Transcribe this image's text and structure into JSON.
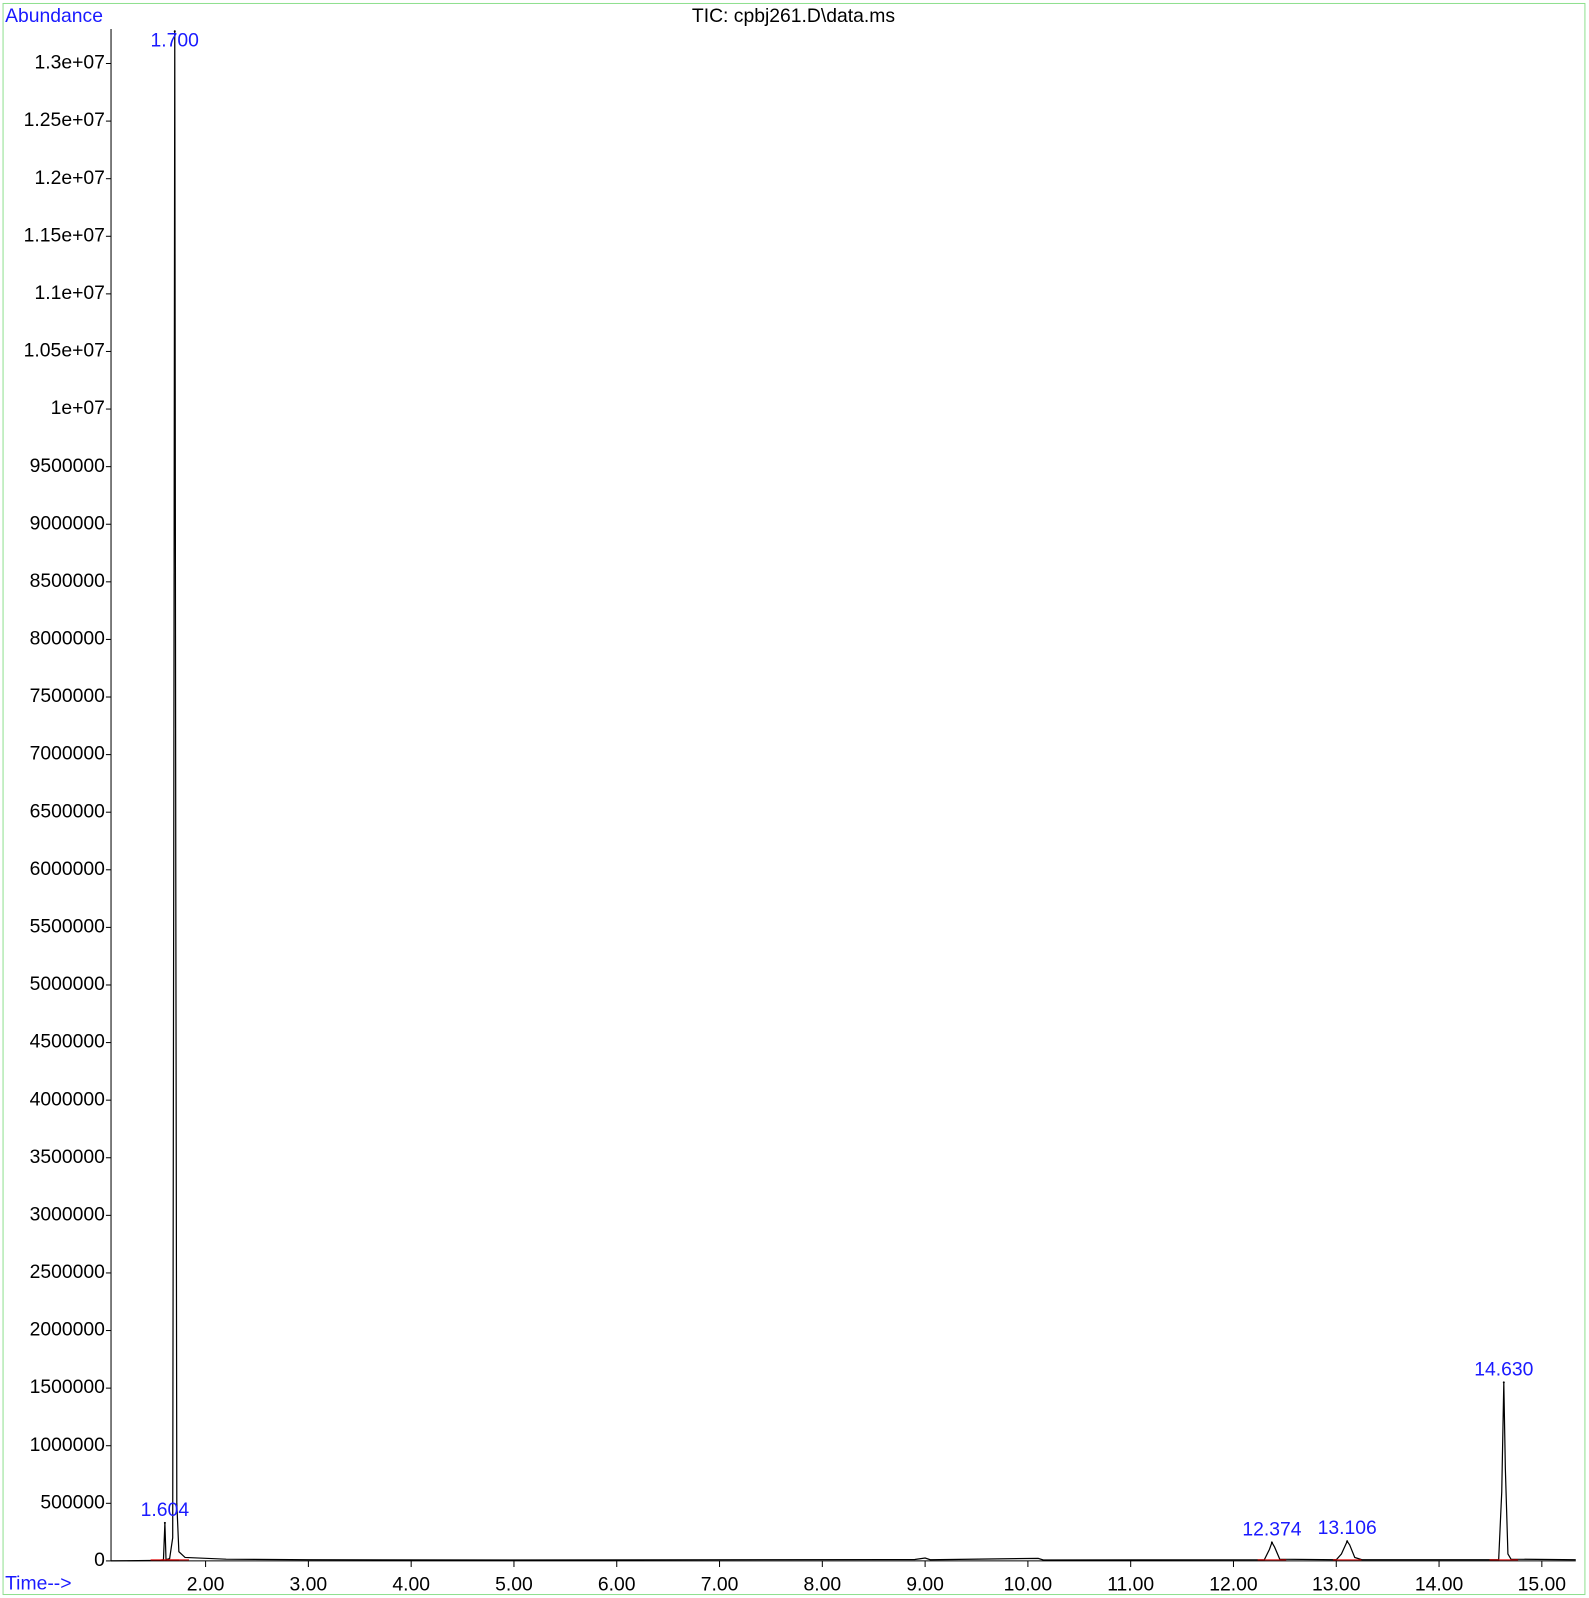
{
  "chart_data": {
    "type": "line",
    "title": "TIC: cpbj261.D\\data.ms",
    "y_label": "Abundance",
    "x_label": "Time-->",
    "xlim": [
      1.08,
      15.33
    ],
    "ylim": [
      0,
      13300000
    ],
    "xticks": [
      {
        "value": 2,
        "label": "2.00"
      },
      {
        "value": 3,
        "label": "3.00"
      },
      {
        "value": 4,
        "label": "4.00"
      },
      {
        "value": 5,
        "label": "5.00"
      },
      {
        "value": 6,
        "label": "6.00"
      },
      {
        "value": 7,
        "label": "7.00"
      },
      {
        "value": 8,
        "label": "8.00"
      },
      {
        "value": 9,
        "label": "9.00"
      },
      {
        "value": 10,
        "label": "10.00"
      },
      {
        "value": 11,
        "label": "11.00"
      },
      {
        "value": 12,
        "label": "12.00"
      },
      {
        "value": 13,
        "label": "13.00"
      },
      {
        "value": 14,
        "label": "14.00"
      },
      {
        "value": 15,
        "label": "15.00"
      }
    ],
    "yticks": [
      0,
      500000,
      1000000,
      1500000,
      2000000,
      2500000,
      3000000,
      3500000,
      4000000,
      4500000,
      5000000,
      5500000,
      6000000,
      6500000,
      7000000,
      7500000,
      8000000,
      8500000,
      9000000,
      9500000,
      {
        "value": 10000000,
        "label": "1e+07"
      },
      {
        "value": 10500000,
        "label": "1.05e+07"
      },
      {
        "value": 11000000,
        "label": "1.1e+07"
      },
      {
        "value": 11500000,
        "label": "1.15e+07"
      },
      {
        "value": 12000000,
        "label": "1.2e+07"
      },
      {
        "value": 12500000,
        "label": "1.25e+07"
      },
      {
        "value": 13000000,
        "label": "1.3e+07"
      }
    ],
    "series": [
      {
        "color": "#000000",
        "x": [
          1.08,
          1.55,
          1.59,
          1.604,
          1.615,
          1.65,
          1.68,
          1.69,
          1.7,
          1.71,
          1.72,
          1.74,
          1.8,
          2.2,
          3.0,
          5.0,
          8.9,
          9.0,
          9.05,
          10.1,
          10.15,
          12.3,
          12.35,
          12.374,
          12.4,
          12.45,
          13.0,
          13.05,
          13.106,
          13.13,
          13.18,
          13.25,
          14.58,
          14.61,
          14.63,
          14.645,
          14.67,
          14.7,
          15.33
        ],
        "values": [
          0,
          5000,
          10000,
          330000,
          10000,
          20000,
          200000,
          6000000,
          13280000,
          6000000,
          500000,
          80000,
          30000,
          15000,
          10000,
          8000,
          12000,
          25000,
          10000,
          22000,
          8000,
          10000,
          100000,
          160000,
          120000,
          15000,
          10000,
          60000,
          170000,
          140000,
          30000,
          10000,
          10000,
          600000,
          1550000,
          800000,
          60000,
          15000,
          10000
        ]
      }
    ],
    "peaks": [
      {
        "label": "1.604",
        "x": 1.604,
        "y": 330000
      },
      {
        "label": "1.700",
        "x": 1.7,
        "y": 13280000
      },
      {
        "label": "12.374",
        "x": 12.374,
        "y": 160000
      },
      {
        "label": "13.106",
        "x": 13.106,
        "y": 170000
      },
      {
        "label": "14.630",
        "x": 14.63,
        "y": 1550000
      }
    ]
  }
}
